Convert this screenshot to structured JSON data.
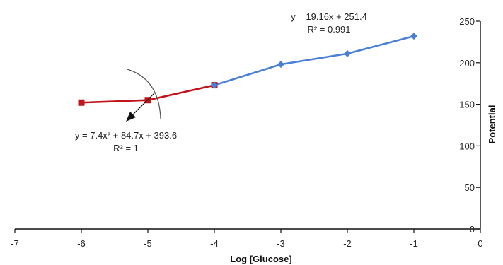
{
  "chart_data": {
    "type": "line",
    "title": "",
    "xlabel": "Log [Glucose]",
    "ylabel": "Potential",
    "xlim": [
      -7,
      0
    ],
    "ylim": [
      0,
      250
    ],
    "x_ticks": [
      -7,
      -6,
      -5,
      -4,
      -3,
      -2,
      -1,
      0
    ],
    "y_ticks": [
      0,
      50,
      100,
      150,
      200,
      250
    ],
    "y_axis_side": "right",
    "grid": false,
    "legend": "none",
    "series": [
      {
        "color": "#c0161b",
        "marker": "square",
        "points": [
          {
            "x": -6,
            "y": 152
          },
          {
            "x": -5,
            "y": 155
          },
          {
            "x": -4,
            "y": 173
          }
        ]
      },
      {
        "color": "#4a7fd6",
        "marker": "diamond",
        "points": [
          {
            "x": -4,
            "y": 173
          },
          {
            "x": -3,
            "y": 198
          },
          {
            "x": -2,
            "y": 211
          },
          {
            "x": -1,
            "y": 232
          }
        ]
      }
    ],
    "annotations": [
      {
        "line1": "y = 19.16x  + 251.4",
        "line2": "R² = 0.991"
      },
      {
        "line1": "y = 7.4x²  + 84.7x + 393.6",
        "line2": "R² = 1"
      }
    ]
  }
}
